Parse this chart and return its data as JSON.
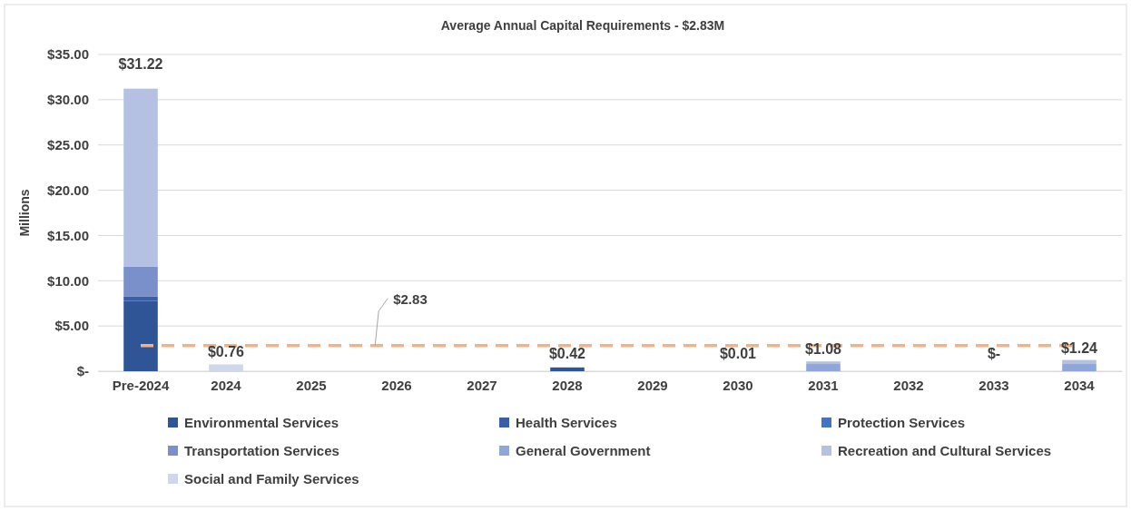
{
  "chart_data": {
    "type": "bar",
    "stacked": true,
    "title": "Average Annual Capital Requirements - $2.83M",
    "ylabel": "Millions",
    "categories": [
      "Pre-2024",
      "2024",
      "2025",
      "2026",
      "2027",
      "2028",
      "2029",
      "2030",
      "2031",
      "2032",
      "2033",
      "2034"
    ],
    "series": [
      {
        "name": "Environmental Services",
        "color": "#2f5597",
        "values": [
          7.78,
          null,
          null,
          null,
          null,
          0.42,
          null,
          null,
          null,
          null,
          null,
          null
        ]
      },
      {
        "name": "Health Services",
        "color": "#3a5ea8",
        "values": [
          0.5,
          null,
          null,
          null,
          null,
          null,
          null,
          null,
          null,
          null,
          null,
          null
        ]
      },
      {
        "name": "Protection Services",
        "color": "#4472c4",
        "values": [
          null,
          null,
          null,
          null,
          null,
          null,
          null,
          null,
          null,
          null,
          null,
          null
        ]
      },
      {
        "name": "Transportation Services",
        "color": "#7990cb",
        "values": [
          3.3,
          null,
          null,
          null,
          null,
          null,
          null,
          null,
          null,
          null,
          null,
          null
        ]
      },
      {
        "name": "General Government",
        "color": "#8fa6db",
        "values": [
          null,
          null,
          null,
          null,
          null,
          null,
          null,
          null,
          0.8,
          null,
          null,
          0.8
        ]
      },
      {
        "name": "Recreation and Cultural Services",
        "color": "#b4c1e2",
        "values": [
          19.64,
          null,
          null,
          null,
          null,
          null,
          null,
          null,
          0.28,
          null,
          null,
          0.44
        ]
      },
      {
        "name": "Social and Family Services",
        "color": "#d0d6ec",
        "values": [
          null,
          0.76,
          null,
          null,
          null,
          null,
          null,
          null,
          null,
          null,
          null,
          null
        ]
      }
    ],
    "totals": [
      "$31.22",
      "$0.76",
      null,
      null,
      null,
      "$0.42",
      null,
      "$0.01",
      "$1.08",
      null,
      "$-",
      "$1.24"
    ],
    "ylim": [
      0,
      35
    ],
    "yticks": [
      {
        "value": 0,
        "label": "$-"
      },
      {
        "value": 5,
        "label": "$5.00"
      },
      {
        "value": 10,
        "label": "$10.00"
      },
      {
        "value": 15,
        "label": "$15.00"
      },
      {
        "value": 20,
        "label": "$20.00"
      },
      {
        "value": 25,
        "label": "$25.00"
      },
      {
        "value": 30,
        "label": "$30.00"
      },
      {
        "value": 35,
        "label": "$35.00"
      }
    ],
    "grid": "y",
    "legend": "bottom",
    "ref_lines": [
      {
        "axis": "y",
        "value": 2.83,
        "label": "$2.83",
        "color": "#f4b183",
        "line_style": "dashed"
      }
    ]
  }
}
